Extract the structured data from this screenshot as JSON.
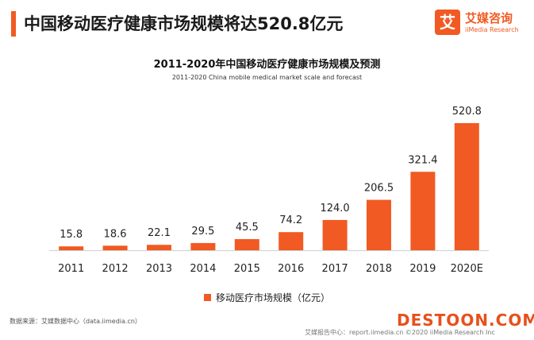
{
  "header": {
    "headline": "中国移动医疗健康市场规模将达520.8亿元",
    "logo_mark": "艾",
    "logo_cn": "艾媒咨询",
    "logo_en": "iiMedia Research"
  },
  "chart_data": {
    "type": "bar",
    "title": "2011-2020年中国移动医疗健康市场规模及预测",
    "subtitle": "2011-2020 China mobile medical market scale and forecast",
    "categories": [
      "2011",
      "2012",
      "2013",
      "2014",
      "2015",
      "2016",
      "2017",
      "2018",
      "2019",
      "2020E"
    ],
    "series": [
      {
        "name": "移动医疗市场规模（亿元）",
        "values": [
          15.8,
          18.6,
          22.1,
          29.5,
          45.5,
          74.2,
          124.0,
          206.5,
          321.4,
          520.8
        ],
        "labels": [
          "15.8",
          "18.6",
          "22.1",
          "29.5",
          "45.5",
          "74.2",
          "124.0",
          "206.5",
          "321.4",
          "520.8"
        ]
      }
    ],
    "ylim": [
      0,
      520.8
    ],
    "grid": false,
    "legend_position": "bottom",
    "bar_color": "#f15a22"
  },
  "footer": {
    "source": "数据来源：艾媒数据中心（data.iimedia.cn）",
    "report": "艾媒报告中心：report.iimedia.cn ©2020 iiMedia Research Inc",
    "watermark": "DESTOON.COM"
  }
}
